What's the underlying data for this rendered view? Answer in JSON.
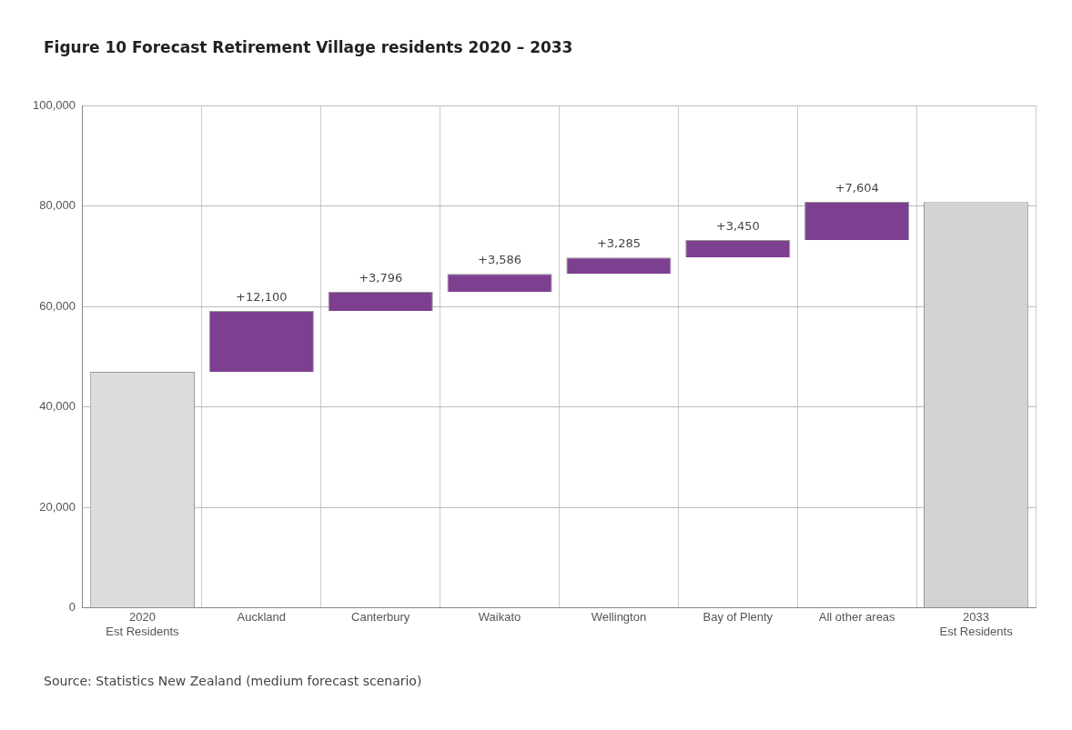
{
  "chart_data": {
    "type": "bar",
    "title": "Figure 10 Forecast Retirement Village residents 2020 – 2033",
    "categories": [
      "2020\nEst Residents",
      "Auckland",
      "Canterbury",
      "Waikato",
      "Wellington",
      "Bay of Plenty",
      "All other areas",
      "2033\nEst Residents"
    ],
    "values": [
      47000,
      12100,
      3796,
      3586,
      3285,
      3450,
      7604,
      80800
    ],
    "base": [
      0,
      47000,
      59100,
      62896,
      66482,
      69767,
      73217,
      0
    ],
    "colors": [
      "#dcdcdc",
      "#7d3f90",
      "#7d3f90",
      "#7d3f90",
      "#7d3f90",
      "#7d3f90",
      "#7d3f90",
      "#d2d2d2"
    ],
    "value_labels": [
      null,
      "+12,100",
      "+3,796",
      "+3,586",
      "+3,285",
      "+3,450",
      "+7,604",
      null
    ],
    "ylim": [
      0,
      100000
    ],
    "yticks": [
      {
        "value": 0,
        "label": "0"
      },
      {
        "value": 20000,
        "label": "20,000"
      },
      {
        "value": 40000,
        "label": "40,000"
      },
      {
        "value": 60000,
        "label": "60,000"
      },
      {
        "value": 80000,
        "label": "80,000"
      },
      {
        "value": 100000,
        "label": "100,000"
      }
    ],
    "grid": true,
    "legend": false,
    "annotations": [
      "Source: Statistics New Zealand (medium forecast scenario)"
    ]
  }
}
